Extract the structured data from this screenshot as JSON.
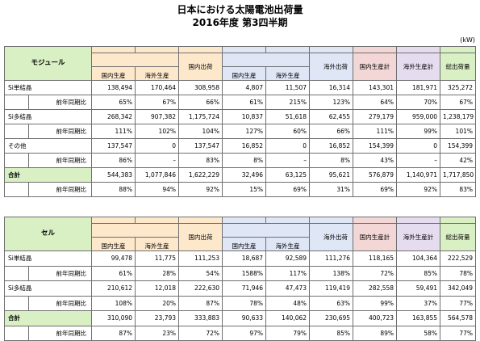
{
  "title_line1": "日本における太陽電池出荷量",
  "title_line2": "2016年度 第3四半期",
  "unit": "(kW)",
  "headers": {
    "domestic_prod": "国内生産",
    "overseas_prod": "海外生産",
    "domestic_ship": "国内出荷",
    "export_ship": "海外出荷",
    "domestic_prod_calc": "国内生産計",
    "overseas_prod_calc": "海外生産計",
    "total_ship": "総出荷量"
  },
  "module": {
    "section": "モジュール",
    "rows": [
      {
        "label": "Si単結晶",
        "values": [
          "138,494",
          "170,464",
          "308,958",
          "4,807",
          "11,507",
          "16,314",
          "143,301",
          "181,971",
          "325,272"
        ]
      },
      {
        "label": "前年同期比",
        "values": [
          "65%",
          "67%",
          "66%",
          "61%",
          "215%",
          "123%",
          "64%",
          "70%",
          "67%"
        ]
      },
      {
        "label": "Si多結晶",
        "values": [
          "268,342",
          "907,382",
          "1,175,724",
          "10,837",
          "51,618",
          "62,455",
          "279,179",
          "959,000",
          "1,238,179"
        ]
      },
      {
        "label": "前年同期比",
        "values": [
          "111%",
          "102%",
          "104%",
          "127%",
          "60%",
          "66%",
          "111%",
          "99%",
          "101%"
        ]
      },
      {
        "label": "その他",
        "values": [
          "137,547",
          "0",
          "137,547",
          "16,852",
          "0",
          "16,852",
          "154,399",
          "0",
          "154,399"
        ]
      },
      {
        "label": "前年同期比",
        "values": [
          "86%",
          "–",
          "83%",
          "8%",
          "–",
          "8%",
          "43%",
          "–",
          "42%"
        ]
      },
      {
        "label": "合計",
        "values": [
          "544,383",
          "1,077,846",
          "1,622,229",
          "32,496",
          "63,125",
          "95,621",
          "576,879",
          "1,140,971",
          "1,717,850"
        ]
      },
      {
        "label": "前年同期比",
        "values": [
          "88%",
          "94%",
          "92%",
          "15%",
          "69%",
          "31%",
          "69%",
          "92%",
          "83%"
        ]
      }
    ]
  },
  "cell": {
    "section": "セル",
    "rows": [
      {
        "label": "Si単結晶",
        "values": [
          "99,478",
          "11,775",
          "111,253",
          "18,687",
          "92,589",
          "111,276",
          "118,165",
          "104,364",
          "222,529"
        ]
      },
      {
        "label": "前年同期比",
        "values": [
          "61%",
          "28%",
          "54%",
          "1588%",
          "117%",
          "138%",
          "72%",
          "85%",
          "78%"
        ]
      },
      {
        "label": "Si多結晶",
        "values": [
          "210,612",
          "12,018",
          "222,630",
          "71,946",
          "47,473",
          "119,419",
          "282,558",
          "59,491",
          "342,049"
        ]
      },
      {
        "label": "前年同期比",
        "values": [
          "108%",
          "20%",
          "87%",
          "78%",
          "48%",
          "63%",
          "99%",
          "37%",
          "77%"
        ]
      },
      {
        "label": "合計",
        "values": [
          "310,090",
          "23,793",
          "333,883",
          "90,633",
          "140,062",
          "230,695",
          "400,723",
          "163,855",
          "564,578"
        ]
      },
      {
        "label": "前年同期比",
        "values": [
          "87%",
          "23%",
          "72%",
          "97%",
          "79%",
          "85%",
          "89%",
          "58%",
          "77%"
        ]
      }
    ]
  },
  "colors": {
    "section_green": "#d9efc4",
    "domestic_orange": "#fde8cc",
    "export_blue": "#dfe6f5",
    "domestic_calc_pink": "#f3d6d6",
    "overseas_calc_purple": "#e6dcf0"
  }
}
